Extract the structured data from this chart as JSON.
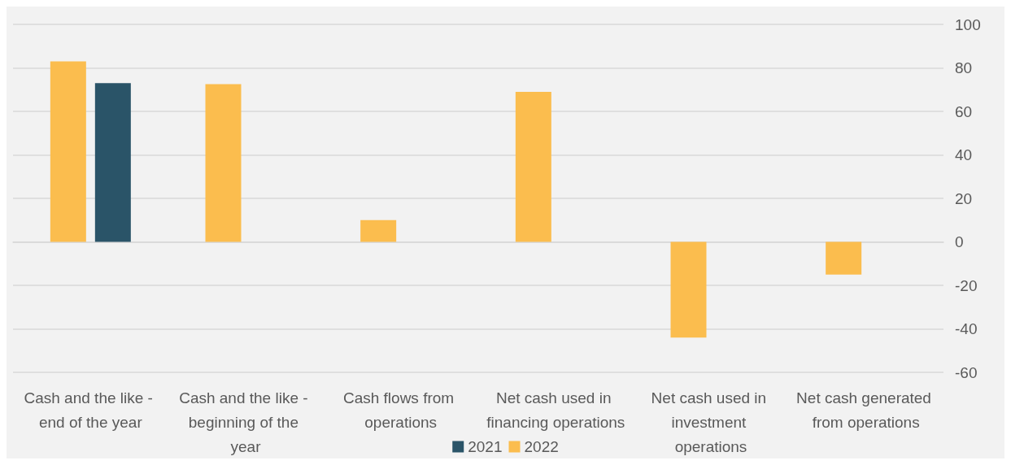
{
  "chart_data": {
    "type": "bar",
    "categories": [
      "Cash and the like - end of the year",
      "Cash and the like - beginning of the year",
      "Cash flows from operations",
      "Net cash used in financing operations",
      "Net cash used in investment operations",
      "Net cash generated from operations"
    ],
    "series": [
      {
        "name": "2021",
        "color": "#2a5468",
        "values": [
          73,
          null,
          null,
          null,
          null,
          null
        ]
      },
      {
        "name": "2022",
        "color": "#fbbd4e",
        "values": [
          83,
          72.5,
          10,
          69,
          -44,
          -15
        ]
      }
    ],
    "ylim": [
      -60,
      100
    ],
    "yticks": [
      -60,
      -40,
      -20,
      0,
      20,
      40,
      60,
      80,
      100
    ],
    "grid": "y",
    "legend": "bottom"
  }
}
